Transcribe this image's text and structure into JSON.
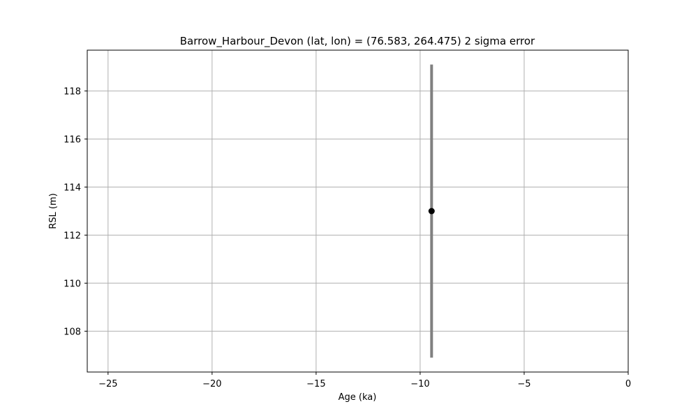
{
  "chart_data": {
    "type": "scatter",
    "title": "Barrow_Harbour_Devon (lat, lon) = (76.583, 264.475)  2 sigma error",
    "xlabel": "Age (ka)",
    "ylabel": "RSL (m)",
    "xlim": [
      -26,
      0
    ],
    "ylim": [
      106.3,
      119.7
    ],
    "xticks": [
      -25,
      -20,
      -15,
      -10,
      -5,
      0
    ],
    "xtick_labels": [
      "−25",
      "−20",
      "−15",
      "−10",
      "−5",
      "0"
    ],
    "yticks": [
      108,
      110,
      112,
      114,
      116,
      118
    ],
    "ytick_labels": [
      "108",
      "110",
      "112",
      "114",
      "116",
      "118"
    ],
    "grid": true,
    "points": [
      {
        "x": -9.45,
        "y": 113.0,
        "y_err_low": 106.9,
        "y_err_high": 119.1
      }
    ],
    "colors": {
      "point": "#000000",
      "errorbar": "#808080",
      "grid": "#b0b0b0"
    }
  }
}
